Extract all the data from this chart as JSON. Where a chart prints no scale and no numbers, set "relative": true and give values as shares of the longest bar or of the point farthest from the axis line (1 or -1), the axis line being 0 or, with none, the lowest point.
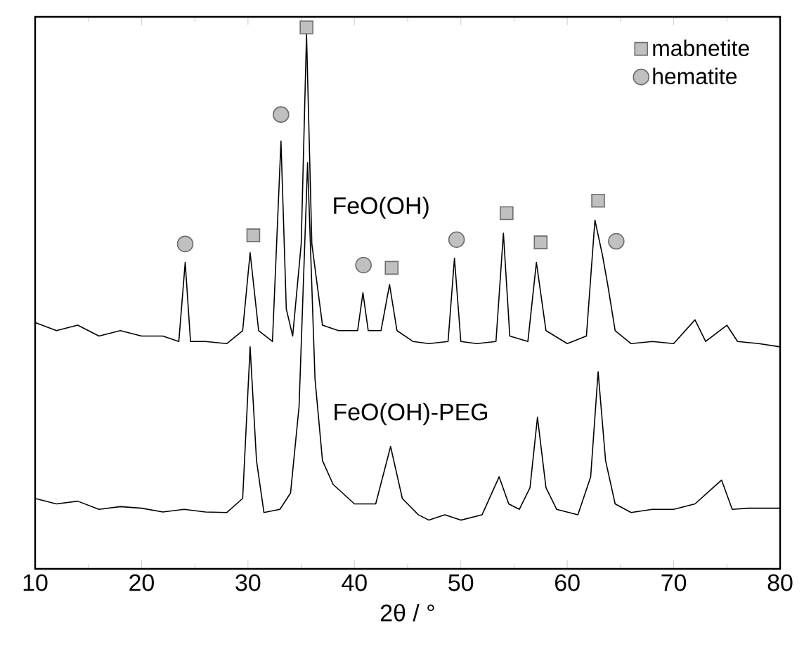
{
  "chart_data": {
    "type": "line",
    "relative": true,
    "xlabel": "2θ / °",
    "xlim": [
      10,
      80
    ],
    "xticks": [
      10,
      20,
      30,
      40,
      50,
      60,
      70,
      80
    ],
    "legend": "top right",
    "grid": false,
    "series": [
      {
        "name": "FeO(OH)",
        "color": "#000000",
        "x": [
          10,
          12,
          14,
          16,
          18,
          20,
          22,
          23.5,
          24.1,
          24.6,
          26,
          28,
          29.5,
          30.2,
          31,
          32.3,
          33.1,
          33.6,
          34.2,
          35,
          35.5,
          36,
          37,
          38.5,
          40.3,
          40.8,
          41.3,
          42.5,
          43.3,
          44,
          45.5,
          47,
          48.8,
          49.4,
          50,
          51.5,
          53.3,
          54,
          54.6,
          56.3,
          57.1,
          58,
          60,
          61.8,
          62.6,
          63.3,
          63.8,
          64.5,
          66,
          68,
          70,
          72,
          73,
          75,
          76,
          78,
          80
        ],
        "values": [
          0.455,
          0.44,
          0.45,
          0.43,
          0.44,
          0.43,
          0.43,
          0.42,
          0.566,
          0.42,
          0.42,
          0.416,
          0.44,
          0.584,
          0.44,
          0.42,
          0.79,
          0.48,
          0.43,
          0.6,
          0.987,
          0.6,
          0.45,
          0.44,
          0.44,
          0.51,
          0.44,
          0.44,
          0.525,
          0.44,
          0.42,
          0.416,
          0.42,
          0.574,
          0.42,
          0.416,
          0.42,
          0.62,
          0.43,
          0.42,
          0.566,
          0.44,
          0.416,
          0.43,
          0.644,
          0.58,
          0.525,
          0.44,
          0.416,
          0.42,
          0.416,
          0.46,
          0.42,
          0.45,
          0.42,
          0.416,
          0.41
        ]
      },
      {
        "name": "FeO(OH)-PEG",
        "color": "#000000",
        "x": [
          10,
          12,
          14,
          16,
          18,
          20,
          22,
          24,
          26,
          28,
          29.5,
          30.2,
          30.8,
          31.5,
          33,
          34,
          34.8,
          35.6,
          36.3,
          37,
          38,
          40,
          42,
          43.4,
          44.5,
          46,
          47,
          48.5,
          50,
          52,
          53.6,
          54.5,
          55.5,
          56.5,
          57.2,
          58,
          59,
          61,
          62.2,
          62.9,
          63.6,
          64.5,
          66,
          68,
          70,
          72,
          74.5,
          75.5,
          77,
          80
        ],
        "values": [
          0.13,
          0.12,
          0.125,
          0.11,
          0.115,
          0.112,
          0.105,
          0.11,
          0.105,
          0.104,
          0.13,
          0.41,
          0.2,
          0.104,
          0.11,
          0.14,
          0.3,
          0.75,
          0.35,
          0.2,
          0.156,
          0.12,
          0.12,
          0.226,
          0.13,
          0.1,
          0.09,
          0.1,
          0.09,
          0.1,
          0.17,
          0.12,
          0.11,
          0.15,
          0.28,
          0.15,
          0.11,
          0.1,
          0.17,
          0.364,
          0.2,
          0.12,
          0.104,
          0.11,
          0.11,
          0.12,
          0.164,
          0.11,
          0.112,
          0.112
        ]
      },
      {
        "name": "mabnetite",
        "type": "scatter",
        "marker": "square",
        "color": "#c0c0c0",
        "x": [
          30.5,
          35.5,
          43.5,
          54.3,
          57.5,
          62.9
        ],
        "values": [
          0.616,
          1.0,
          0.556,
          0.657,
          0.603,
          0.68
        ]
      },
      {
        "name": "hematite",
        "type": "scatter",
        "marker": "circle",
        "color": "#c0c0c0",
        "x": [
          24.1,
          33.1,
          40.85,
          49.6,
          64.6
        ],
        "values": [
          0.6,
          0.839,
          0.561,
          0.608,
          0.605
        ]
      }
    ]
  }
}
